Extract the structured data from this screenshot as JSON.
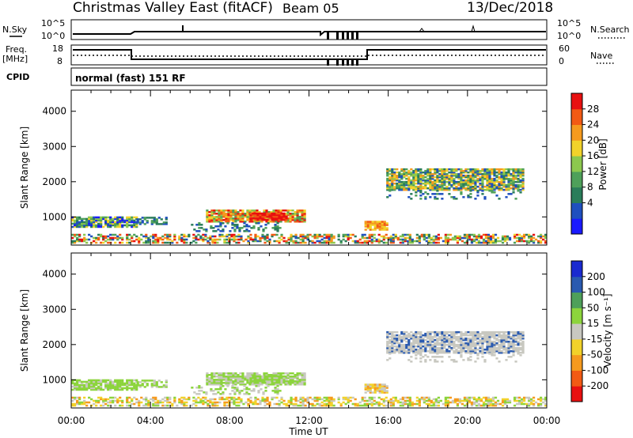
{
  "header": {
    "title": "Christmas Valley East (fitACF)",
    "beam": "Beam 05",
    "date": "13/Dec/2018"
  },
  "strips": {
    "nsky_label": "N.Sky",
    "nsky_ticks": [
      "10^5",
      "10^0"
    ],
    "nsearch_label": "N.Search",
    "nsearch_ticks": [
      "10^5",
      "10^0"
    ],
    "freq_label_1": "Freq.",
    "freq_label_2": "[MHz]",
    "freq_ticks": [
      "18",
      "8"
    ],
    "nave_label": "Nave",
    "nave_ticks": [
      "60",
      "0"
    ],
    "cpid_label": "CPID",
    "cpid_value": "normal (fast) 151 RF"
  },
  "colors": {
    "power_scale": [
      "#1a1aff",
      "#1f4fbf",
      "#2a7d5a",
      "#4ea05a",
      "#8cc84e",
      "#f2d22a",
      "#f59a1e",
      "#f25a14",
      "#e81010"
    ],
    "velocity_scale": [
      "#e81010",
      "#f25a14",
      "#f59a1e",
      "#f2d22a",
      "#c8c8c0",
      "#8cd43c",
      "#4ea05a",
      "#2a5ab0",
      "#1a2ad0"
    ]
  },
  "chart_data": [
    {
      "type": "heatmap",
      "name": "power",
      "ylabel": "Slant Range [km]",
      "xlabel": "",
      "y_ticks": [
        1000,
        2000,
        3000,
        4000
      ],
      "ylim": [
        200,
        4600
      ],
      "colorbar_label": "Power [dB]",
      "colorbar_ticks": [
        "28",
        "24",
        "20",
        "16",
        "12",
        "8",
        "4"
      ],
      "colorbar_range": [
        0,
        32
      ]
    },
    {
      "type": "heatmap",
      "name": "velocity",
      "ylabel": "Slant Range [km]",
      "xlabel": "Time UT",
      "x_ticks": [
        "00:00",
        "04:00",
        "08:00",
        "12:00",
        "16:00",
        "20:00",
        "00:00"
      ],
      "y_ticks": [
        1000,
        2000,
        3000,
        4000
      ],
      "ylim": [
        200,
        4600
      ],
      "colorbar_label": "Velocity [m s⁻¹]",
      "colorbar_ticks": [
        "200",
        "100",
        "50",
        "15",
        "-15",
        "-50",
        "-100",
        "-200"
      ]
    }
  ]
}
